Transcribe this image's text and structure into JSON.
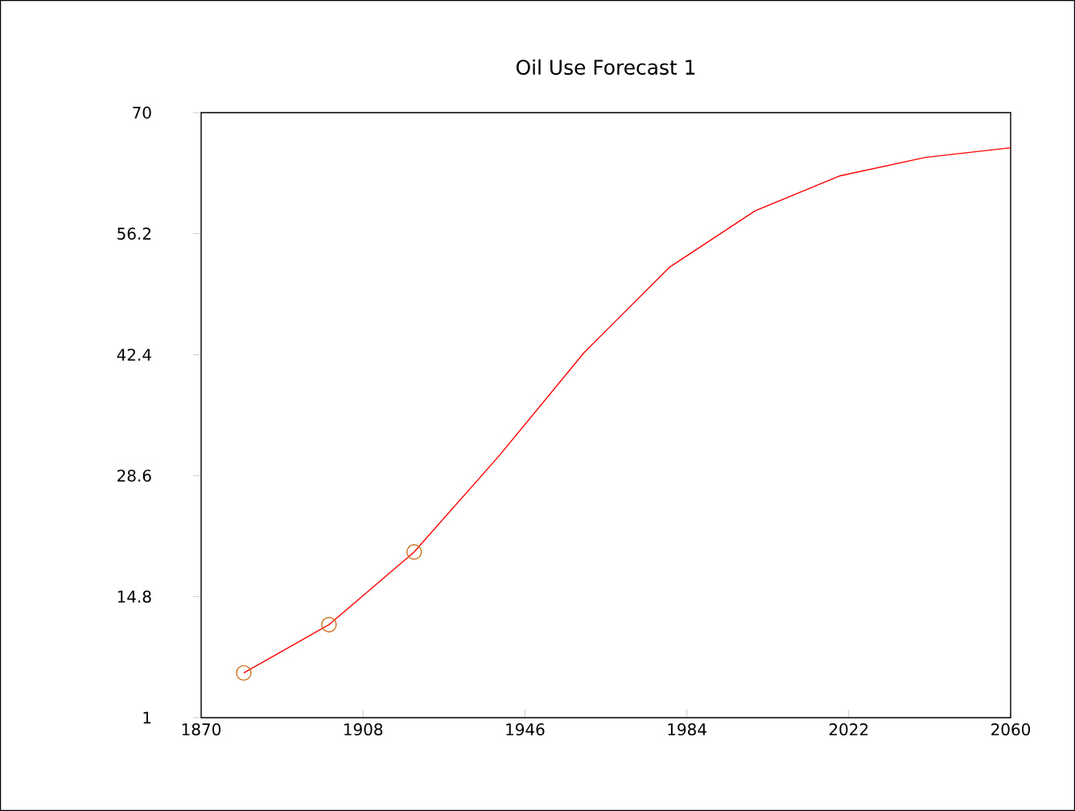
{
  "chart_data": {
    "type": "line",
    "title": "Oil Use Forecast 1",
    "x": [
      1880,
      1900,
      1920,
      1940,
      1960,
      1980,
      2000,
      2020,
      2040,
      2060
    ],
    "series": [
      {
        "color": "#ff0000",
        "values": [
          6.1,
          11.6,
          19.9,
          30.9,
          42.7,
          52.4,
          58.8,
          62.8,
          64.9,
          66.0
        ]
      },
      {
        "type": "scatter",
        "marker": "circle",
        "color": "#c8701e",
        "x": [
          1880,
          1900,
          1920
        ],
        "values": [
          6.1,
          11.6,
          19.9
        ]
      }
    ],
    "xlim": [
      1870,
      2060
    ],
    "xticks": [
      1870,
      1908,
      1946,
      1984,
      2022,
      2060
    ],
    "ylim": [
      1,
      70
    ],
    "yticks": [
      1,
      14.8,
      28.6,
      42.4,
      56.2,
      70
    ]
  }
}
